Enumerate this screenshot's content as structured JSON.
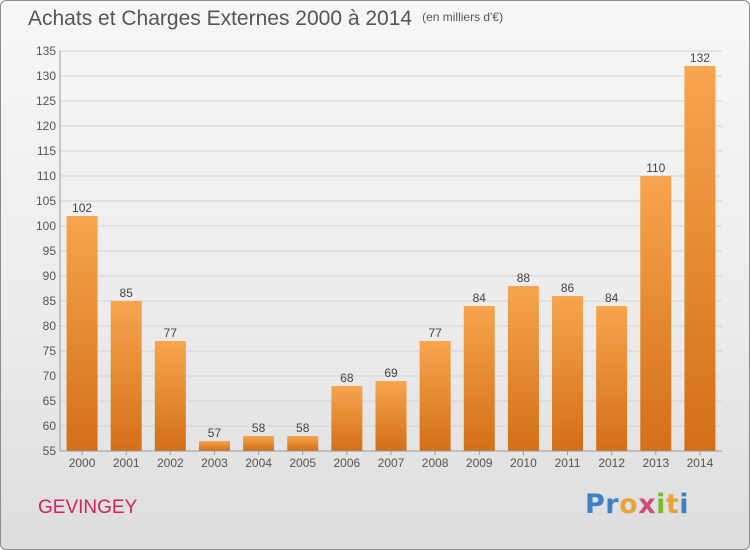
{
  "title": "Achats et Charges Externes 2000 à 2014",
  "subtitle": "(en milliers d'€)",
  "commune": "GEVINGEY",
  "logo_text": "Proxiti",
  "colors": {
    "bar_light": "#f7a54e",
    "bar_dark": "#d36f18",
    "grid": "#d3d3d3",
    "axis": "#555555",
    "commune": "#d0245a"
  },
  "chart_data": {
    "type": "bar",
    "title": "Achats et Charges Externes 2000 à 2014",
    "subtitle": "(en milliers d'€)",
    "xlabel": "",
    "ylabel": "",
    "categories": [
      "2000",
      "2001",
      "2002",
      "2003",
      "2004",
      "2005",
      "2006",
      "2007",
      "2008",
      "2009",
      "2010",
      "2011",
      "2012",
      "2013",
      "2014"
    ],
    "values": [
      102,
      85,
      77,
      57,
      58,
      58,
      68,
      69,
      77,
      84,
      88,
      86,
      84,
      110,
      132
    ],
    "ylim": [
      55,
      135
    ],
    "yticks": [
      55,
      60,
      65,
      70,
      75,
      80,
      85,
      90,
      95,
      100,
      105,
      110,
      115,
      120,
      125,
      130,
      135
    ],
    "grid": true,
    "legend": "none"
  }
}
